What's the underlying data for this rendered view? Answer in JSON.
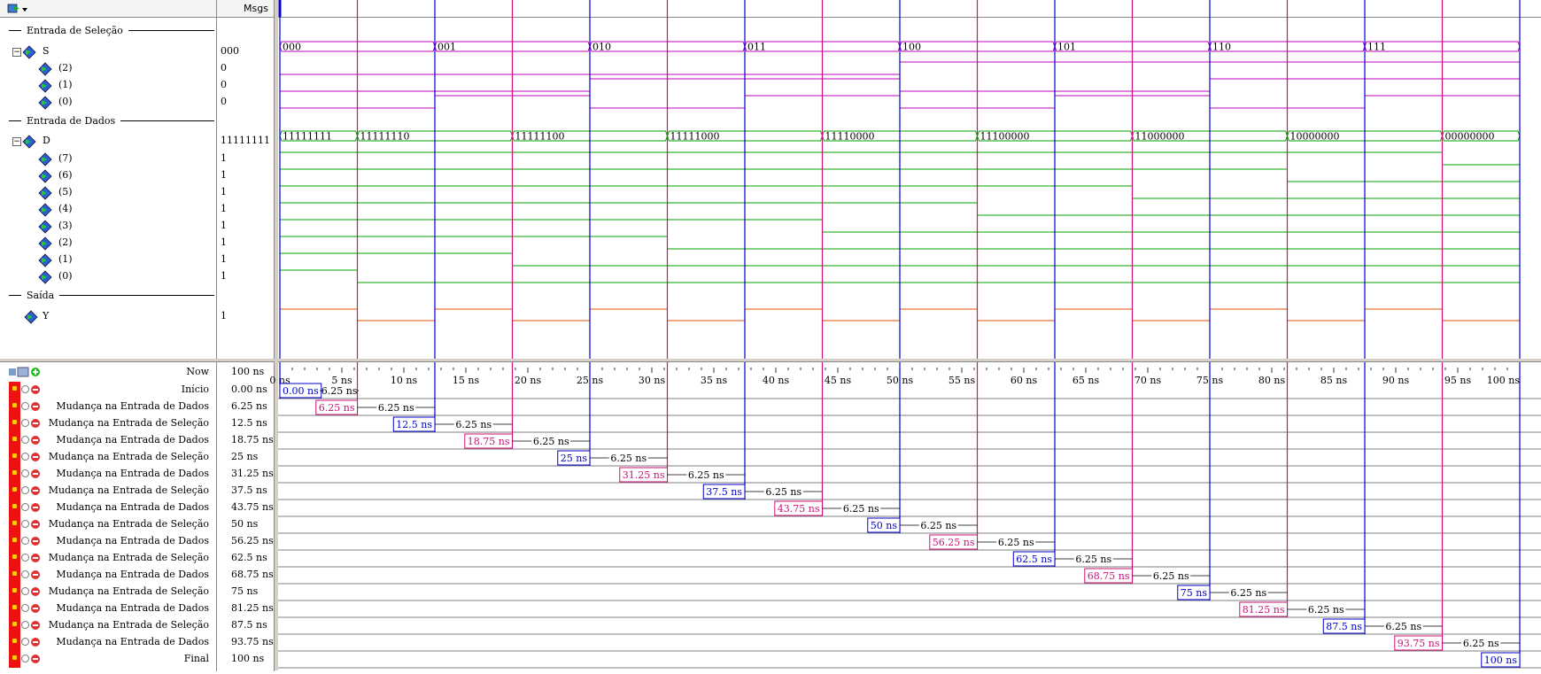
{
  "header": {
    "values_title": "Msgs"
  },
  "dividers": {
    "select": "Entrada de Seleção",
    "data": "Entrada de Dados",
    "output": "Saída"
  },
  "signals": {
    "S": {
      "name": "S",
      "value": "000",
      "bits": [
        {
          "name": "(2)",
          "value": "0"
        },
        {
          "name": "(1)",
          "value": "0"
        },
        {
          "name": "(0)",
          "value": "0"
        }
      ]
    },
    "D": {
      "name": "D",
      "value": "11111111",
      "bits": [
        {
          "name": "(7)",
          "value": "1"
        },
        {
          "name": "(6)",
          "value": "1"
        },
        {
          "name": "(5)",
          "value": "1"
        },
        {
          "name": "(4)",
          "value": "1"
        },
        {
          "name": "(3)",
          "value": "1"
        },
        {
          "name": "(2)",
          "value": "1"
        },
        {
          "name": "(1)",
          "value": "1"
        },
        {
          "name": "(0)",
          "value": "1"
        }
      ]
    },
    "Y": {
      "name": "Y",
      "value": "1"
    }
  },
  "waveform": {
    "time_range_ns": [
      0,
      100
    ],
    "s_segments": [
      {
        "start": 0,
        "end": 12.5,
        "label": "000"
      },
      {
        "start": 12.5,
        "end": 25,
        "label": "001"
      },
      {
        "start": 25,
        "end": 37.5,
        "label": "010"
      },
      {
        "start": 37.5,
        "end": 50,
        "label": "011"
      },
      {
        "start": 50,
        "end": 62.5,
        "label": "100"
      },
      {
        "start": 62.5,
        "end": 75,
        "label": "101"
      },
      {
        "start": 75,
        "end": 87.5,
        "label": "110"
      },
      {
        "start": 87.5,
        "end": 100,
        "label": "111"
      }
    ],
    "d_segments": [
      {
        "start": 0,
        "end": 6.25,
        "label": "11111111"
      },
      {
        "start": 6.25,
        "end": 18.75,
        "label": "11111110"
      },
      {
        "start": 18.75,
        "end": 31.25,
        "label": "11111100"
      },
      {
        "start": 31.25,
        "end": 43.75,
        "label": "11111000"
      },
      {
        "start": 43.75,
        "end": 56.25,
        "label": "11110000"
      },
      {
        "start": 56.25,
        "end": 68.75,
        "label": "11100000"
      },
      {
        "start": 68.75,
        "end": 81.25,
        "label": "11000000"
      },
      {
        "start": 81.25,
        "end": 93.75,
        "label": "10000000"
      },
      {
        "start": 93.75,
        "end": 100,
        "label": "00000000"
      }
    ],
    "y_transitions": [
      0,
      6.25,
      12.5,
      18.75,
      25,
      31.25,
      37.5,
      43.75,
      50,
      56.25,
      62.5,
      68.75,
      75,
      81.25,
      87.5,
      93.75
    ],
    "y_start_value": 1,
    "colors": {
      "s": "#c000c0",
      "d": "#00a000",
      "y": "#e05000",
      "cursor_blue": "#0000cc",
      "cursor_pink": "#cc1177"
    }
  },
  "timeline": {
    "now_label": "Now",
    "now_value": "100 ns",
    "ticks": [
      "0 ns",
      "5 ns",
      "10 ns",
      "15 ns",
      "20 ns",
      "25 ns",
      "30 ns",
      "35 ns",
      "40 ns",
      "45 ns",
      "50 ns",
      "55 ns",
      "60 ns",
      "65 ns",
      "70 ns",
      "75 ns",
      "80 ns",
      "85 ns",
      "90 ns",
      "95 ns",
      "100 ns"
    ]
  },
  "cursors": [
    {
      "name": "Início",
      "value": "0.00 ns",
      "time": 0,
      "label": "0.00 ns",
      "delta": "6.25 ns",
      "color": "blue"
    },
    {
      "name": "Mudança na Entrada de Dados",
      "value": "6.25 ns",
      "time": 6.25,
      "label": "6.25 ns",
      "delta": "6.25 ns",
      "color": "pink"
    },
    {
      "name": "Mudança na Entrada de Seleção",
      "value": "12.5 ns",
      "time": 12.5,
      "label": "12.5 ns",
      "delta": "6.25 ns",
      "color": "blue"
    },
    {
      "name": "Mudança na Entrada de Dados",
      "value": "18.75 ns",
      "time": 18.75,
      "label": "18.75 ns",
      "delta": "6.25 ns",
      "color": "pink"
    },
    {
      "name": "Mudança na Entrada de Seleção",
      "value": "25 ns",
      "time": 25,
      "label": "25 ns",
      "delta": "6.25 ns",
      "color": "blue"
    },
    {
      "name": "Mudança na Entrada de Dados",
      "value": "31.25 ns",
      "time": 31.25,
      "label": "31.25 ns",
      "delta": "6.25 ns",
      "color": "pink"
    },
    {
      "name": "Mudança na Entrada de Seleção",
      "value": "37.5 ns",
      "time": 37.5,
      "label": "37.5 ns",
      "delta": "6.25 ns",
      "color": "blue"
    },
    {
      "name": "Mudança na Entrada de Dados",
      "value": "43.75 ns",
      "time": 43.75,
      "label": "43.75 ns",
      "delta": "6.25 ns",
      "color": "pink"
    },
    {
      "name": "Mudança na Entrada de Seleção",
      "value": "50 ns",
      "time": 50,
      "label": "50 ns",
      "delta": "6.25 ns",
      "color": "blue"
    },
    {
      "name": "Mudança na Entrada de Dados",
      "value": "56.25 ns",
      "time": 56.25,
      "label": "56.25 ns",
      "delta": "6.25 ns",
      "color": "pink"
    },
    {
      "name": "Mudança na Entrada de Seleção",
      "value": "62.5 ns",
      "time": 62.5,
      "label": "62.5 ns",
      "delta": "6.25 ns",
      "color": "blue"
    },
    {
      "name": "Mudança na Entrada de Dados",
      "value": "68.75 ns",
      "time": 68.75,
      "label": "68.75 ns",
      "delta": "6.25 ns",
      "color": "pink"
    },
    {
      "name": "Mudança na Entrada de Seleção",
      "value": "75 ns",
      "time": 75,
      "label": "75 ns",
      "delta": "6.25 ns",
      "color": "blue"
    },
    {
      "name": "Mudança na Entrada de Dados",
      "value": "81.25 ns",
      "time": 81.25,
      "label": "81.25 ns",
      "delta": "6.25 ns",
      "color": "pink"
    },
    {
      "name": "Mudança na Entrada de Seleção",
      "value": "87.5 ns",
      "time": 87.5,
      "label": "87.5 ns",
      "delta": "6.25 ns",
      "color": "blue"
    },
    {
      "name": "Mudança na Entrada de Dados",
      "value": "93.75 ns",
      "time": 93.75,
      "label": "93.75 ns",
      "delta": "6.25 ns",
      "color": "pink"
    },
    {
      "name": "Final",
      "value": "100 ns",
      "time": 100,
      "label": "100 ns",
      "delta": "",
      "color": "blue"
    }
  ]
}
